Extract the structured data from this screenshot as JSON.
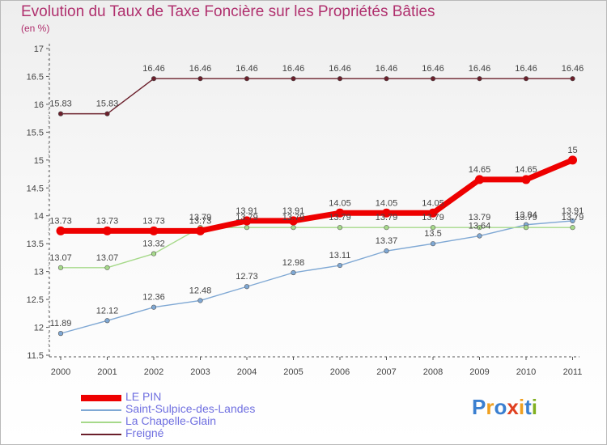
{
  "header": {
    "title": "Evolution du Taux de Taxe Foncière sur les Propriétés Bâties",
    "subtitle": "(en %)"
  },
  "logo": {
    "text": "Proxiti",
    "letters": [
      {
        "ch": "P",
        "color": "#3a7fd0"
      },
      {
        "ch": "r",
        "color": "#f0a020"
      },
      {
        "ch": "o",
        "color": "#3a7fd0"
      },
      {
        "ch": "x",
        "color": "#e04020"
      },
      {
        "ch": "i",
        "color": "#f0a020"
      },
      {
        "ch": "t",
        "color": "#3a7fd0"
      },
      {
        "ch": "i",
        "color": "#80b020"
      }
    ]
  },
  "chart_data": {
    "type": "line",
    "title": "Evolution du Taux de Taxe Foncière sur les Propriétés Bâties",
    "ylabel": "(en %)",
    "xlabel": "",
    "ylim": [
      11.5,
      17
    ],
    "yticks": [
      "11.5",
      "12",
      "12.5",
      "13",
      "13.5",
      "14",
      "14.5",
      "15",
      "15.5",
      "16",
      "16.5",
      "17"
    ],
    "grid": false,
    "legend_position": "bottom-left",
    "categories": [
      "2000",
      "2001",
      "2002",
      "2003",
      "2004",
      "2005",
      "2006",
      "2007",
      "2008",
      "2009",
      "2010",
      "2011"
    ],
    "series": [
      {
        "name": "Freigné",
        "color": "#6b1f2b",
        "values": [
          15.83,
          15.83,
          16.46,
          16.46,
          16.46,
          16.46,
          16.46,
          16.46,
          16.46,
          16.46,
          16.46,
          16.46
        ],
        "labels": [
          "15.83",
          "15.83",
          "16.46",
          "16.46",
          "16.46",
          "16.46",
          "16.46",
          "16.46",
          "16.46",
          "16.46",
          "16.46",
          "16.46"
        ]
      },
      {
        "name": "Saint-Sulpice-des-Landes",
        "color": "#7fa8d4",
        "values": [
          11.89,
          12.12,
          12.36,
          12.48,
          12.73,
          12.98,
          13.11,
          13.37,
          13.5,
          13.64,
          13.84,
          13.91
        ],
        "labels": [
          "11.89",
          "12.12",
          "12.36",
          "12.48",
          "12.73",
          "12.98",
          "13.11",
          "13.37",
          "13.5",
          "13.64",
          "13.84",
          "13.91"
        ]
      },
      {
        "name": "La Chapelle-Glain",
        "color": "#a6d98a",
        "values": [
          13.07,
          13.07,
          13.32,
          13.79,
          13.79,
          13.79,
          13.79,
          13.79,
          13.79,
          13.79,
          13.79,
          13.79
        ],
        "labels": [
          "13.07",
          "13.07",
          "13.32",
          "13.79",
          "13.79",
          "13.79",
          "13.79",
          "13.79",
          "13.79",
          "13.79",
          "13.79",
          "13.79"
        ]
      },
      {
        "name": "LE PIN",
        "color": "#ee0000",
        "values": [
          13.73,
          13.73,
          13.73,
          13.73,
          13.91,
          13.91,
          14.05,
          14.05,
          14.05,
          14.65,
          14.65,
          15
        ],
        "labels": [
          "13.73",
          "13.73",
          "13.73",
          "13.73",
          "13.91",
          "13.91",
          "14.05",
          "14.05",
          "14.05",
          "14.65",
          "14.65",
          "15"
        ]
      }
    ],
    "legend": [
      "LE PIN",
      "Saint-Sulpice-des-Landes",
      "La Chapelle-Glain",
      "Freigné"
    ]
  }
}
